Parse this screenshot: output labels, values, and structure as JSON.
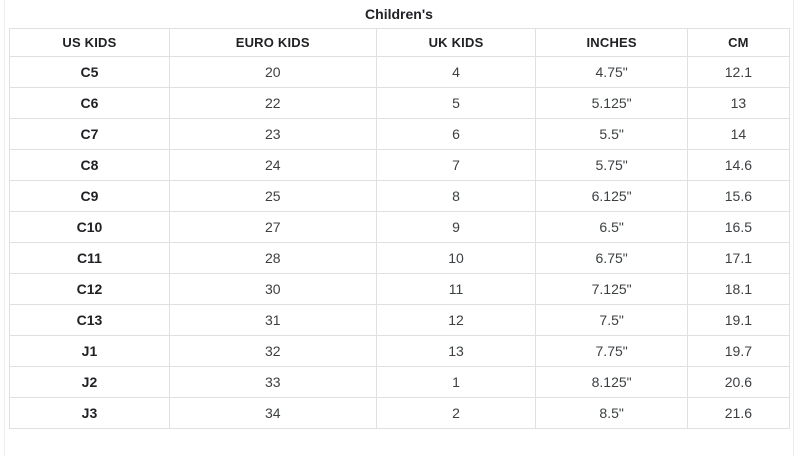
{
  "title": "Children's",
  "chart_data": {
    "type": "table",
    "title": "Children's",
    "columns": [
      "US KIDS",
      "EURO KIDS",
      "UK KIDS",
      "INCHES",
      "CM"
    ],
    "rows": [
      [
        "C5",
        "20",
        "4",
        "4.75\"",
        "12.1"
      ],
      [
        "C6",
        "22",
        "5",
        "5.125\"",
        "13"
      ],
      [
        "C7",
        "23",
        "6",
        "5.5\"",
        "14"
      ],
      [
        "C8",
        "24",
        "7",
        "5.75\"",
        "14.6"
      ],
      [
        "C9",
        "25",
        "8",
        "6.125\"",
        "15.6"
      ],
      [
        "C10",
        "27",
        "9",
        "6.5\"",
        "16.5"
      ],
      [
        "C11",
        "28",
        "10",
        "6.75\"",
        "17.1"
      ],
      [
        "C12",
        "30",
        "11",
        "7.125\"",
        "18.1"
      ],
      [
        "C13",
        "31",
        "12",
        "7.5\"",
        "19.1"
      ],
      [
        "J1",
        "32",
        "13",
        "7.75\"",
        "19.7"
      ],
      [
        "J2",
        "33",
        "1",
        "8.125\"",
        "20.6"
      ],
      [
        "J3",
        "34",
        "2",
        "8.5\"",
        "21.6"
      ]
    ],
    "layout": {
      "grid": true,
      "first_column_bold": true,
      "alignment": "center"
    }
  },
  "colors": {
    "table_border": "#e0e0e0",
    "outer_border": "#ededed",
    "header_text": "#202124",
    "body_text": "#3c4043",
    "background": "#ffffff"
  }
}
